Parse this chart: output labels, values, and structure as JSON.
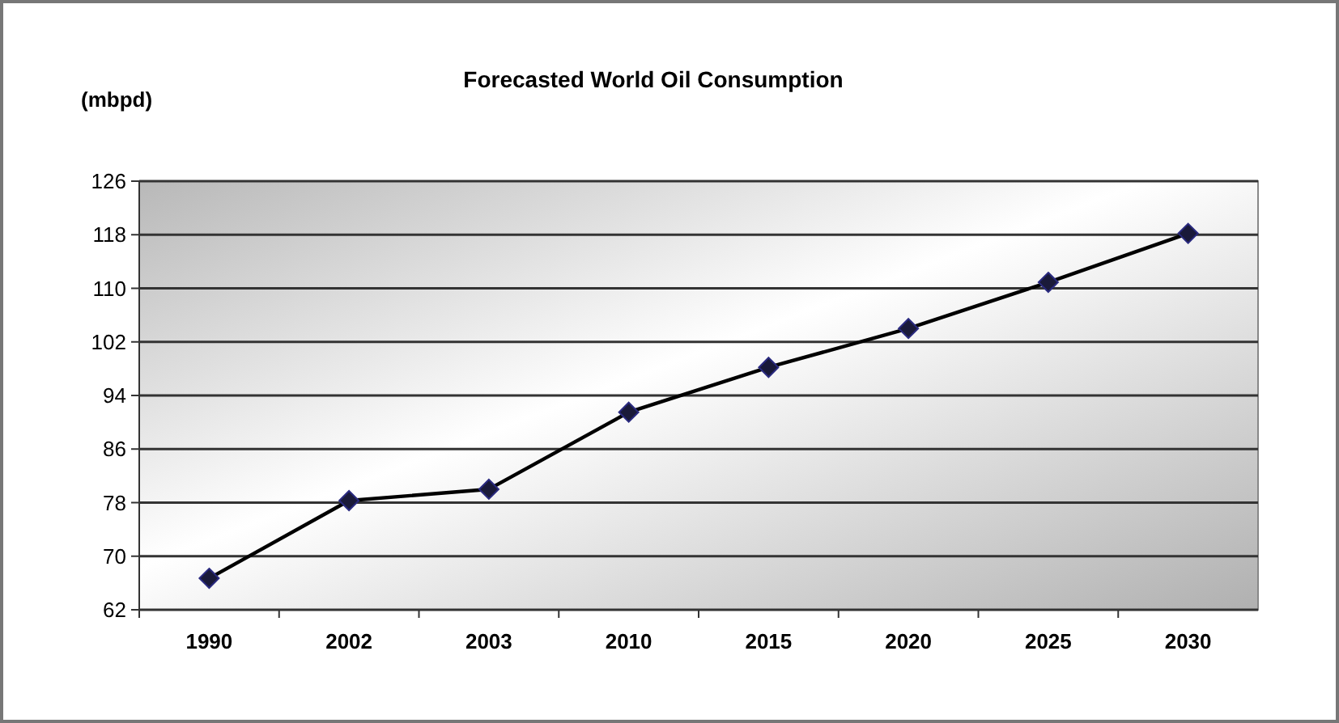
{
  "chart_data": {
    "type": "line",
    "title": "Forecasted World Oil Consumption",
    "ylabel": "(mbpd)",
    "categories": [
      "1990",
      "2002",
      "2003",
      "2010",
      "2015",
      "2020",
      "2025",
      "2030"
    ],
    "series": [
      {
        "color": "#000000",
        "values": [
          66.7,
          78.3,
          80,
          91.5,
          98.2,
          104,
          110.9,
          118.2
        ]
      }
    ],
    "ylim": [
      62,
      126
    ],
    "yticks": [
      62,
      70,
      78,
      86,
      94,
      102,
      110,
      118,
      126
    ],
    "grid": "y",
    "marker": "diamond"
  }
}
